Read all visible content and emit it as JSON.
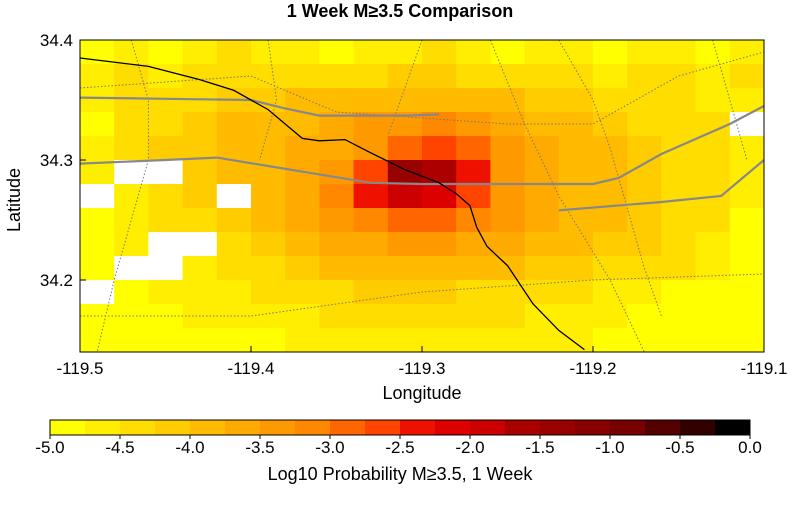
{
  "title": "1 Week M≥3.5 Comparison",
  "map": {
    "x_label": "Longitude",
    "y_label": "Latitude",
    "x_ticks": [
      "-119.5",
      "-119.4",
      "-119.3",
      "-119.2",
      "-119.1"
    ],
    "y_ticks": [
      "34.4",
      "34.3",
      "34.2"
    ],
    "lon_range": [
      -119.5,
      -119.1
    ],
    "lat_range": [
      34.14,
      34.4
    ],
    "cell_size_deg": 0.02,
    "missing_value_color": "#ffffff",
    "field_note": "grid of log10 probability values; null = no data (white)",
    "grid": [
      [
        -4.8,
        -4.6,
        -4.9,
        -4.7,
        -4.5,
        -4.6,
        -4.7,
        -4.8,
        -4.6,
        -4.7,
        -4.5,
        -4.6,
        -4.8,
        -4.7,
        -4.6,
        -4.8,
        -4.7,
        -4.6,
        -4.8,
        -4.6
      ],
      [
        -4.6,
        -4.5,
        -4.6,
        -4.5,
        -4.4,
        -4.3,
        -4.5,
        -4.4,
        -4.3,
        -4.2,
        -4.2,
        -4.3,
        -4.5,
        -4.4,
        -4.3,
        -4.6,
        -4.5,
        -4.4,
        -4.6,
        -4.5
      ],
      [
        -4.7,
        -4.5,
        -4.4,
        -4.3,
        -4.2,
        -4.1,
        -4.0,
        -4.0,
        -3.9,
        -3.8,
        -3.8,
        -3.9,
        -4.0,
        -4.1,
        -4.2,
        -4.3,
        -4.4,
        -4.5,
        -4.7,
        -4.6
      ],
      [
        -4.8,
        -4.5,
        -4.3,
        -4.2,
        -4.0,
        -3.9,
        -3.8,
        -3.7,
        -3.5,
        -3.3,
        -3.2,
        -3.4,
        -3.6,
        -3.8,
        -4.0,
        -4.1,
        -4.3,
        -4.4,
        -4.5,
        null
      ],
      [
        -4.7,
        -4.4,
        -4.2,
        -4.1,
        -3.9,
        -3.8,
        -3.7,
        -3.6,
        -3.3,
        -2.8,
        -2.6,
        -3.0,
        -3.4,
        -3.7,
        -3.9,
        -4.0,
        -4.2,
        -4.3,
        -4.5,
        -4.7
      ],
      [
        -4.6,
        null,
        null,
        -4.1,
        -4.0,
        -3.8,
        -3.6,
        -3.3,
        -2.6,
        -1.4,
        -1.6,
        -2.4,
        -3.3,
        -3.6,
        -3.8,
        -4.0,
        -4.1,
        -4.3,
        -4.5,
        -4.6
      ],
      [
        null,
        -4.6,
        -4.4,
        -4.2,
        null,
        -3.8,
        -3.6,
        -3.2,
        -2.4,
        -2.0,
        -2.1,
        -2.6,
        -3.3,
        -3.6,
        -3.8,
        -4.0,
        -4.1,
        -4.3,
        -4.4,
        -4.6
      ],
      [
        -4.8,
        -4.6,
        -4.5,
        -4.3,
        -4.1,
        -3.9,
        -3.7,
        -3.5,
        -3.1,
        -2.9,
        -3.0,
        -3.2,
        -3.5,
        -3.7,
        -3.8,
        -4.0,
        -4.1,
        -4.3,
        -4.5,
        -4.8
      ],
      [
        -4.9,
        -4.7,
        null,
        null,
        -4.3,
        -4.1,
        -3.9,
        -3.7,
        -3.6,
        -3.5,
        -3.5,
        -3.6,
        -3.7,
        -3.8,
        -3.9,
        -4.1,
        -4.2,
        -4.4,
        -4.6,
        -4.9
      ],
      [
        -4.8,
        null,
        null,
        -4.6,
        -4.5,
        -4.3,
        -4.1,
        -4.0,
        -3.9,
        -3.9,
        -3.9,
        -4.0,
        -4.0,
        -4.1,
        -4.2,
        -4.3,
        -4.4,
        -4.5,
        -4.7,
        -4.8
      ],
      [
        null,
        -4.8,
        -4.7,
        -4.6,
        -4.6,
        -4.5,
        -4.4,
        -4.3,
        -4.2,
        -4.2,
        -4.2,
        -4.3,
        -4.3,
        -4.4,
        -4.5,
        -4.6,
        -4.7,
        -4.8,
        -4.8,
        -4.9
      ],
      [
        -4.9,
        -4.8,
        -4.8,
        -4.7,
        -4.7,
        -4.6,
        -4.6,
        -4.5,
        -4.5,
        -4.4,
        -4.4,
        -4.5,
        -4.5,
        -4.6,
        -4.6,
        -4.7,
        -4.8,
        -4.8,
        -4.9,
        -4.9
      ],
      [
        -4.9,
        -4.9,
        -4.9,
        -4.8,
        -4.8,
        -4.8,
        -4.7,
        -4.7,
        -4.7,
        -4.6,
        -4.6,
        -4.6,
        -4.7,
        -4.7,
        -4.7,
        -4.8,
        -4.8,
        -4.9,
        -4.9,
        -4.9
      ]
    ],
    "coastline": [
      [
        -119.5,
        34.385
      ],
      [
        -119.46,
        34.378
      ],
      [
        -119.43,
        34.367
      ],
      [
        -119.41,
        34.358
      ],
      [
        -119.39,
        34.342
      ],
      [
        -119.37,
        34.318
      ],
      [
        -119.36,
        34.316
      ],
      [
        -119.345,
        34.317
      ],
      [
        -119.33,
        34.306
      ],
      [
        -119.31,
        34.292
      ],
      [
        -119.29,
        34.281
      ],
      [
        -119.28,
        34.272
      ],
      [
        -119.272,
        34.262
      ],
      [
        -119.268,
        34.244
      ],
      [
        -119.262,
        34.228
      ],
      [
        -119.25,
        34.212
      ],
      [
        -119.235,
        34.18
      ],
      [
        -119.22,
        34.158
      ],
      [
        -119.205,
        34.142
      ]
    ],
    "roads": [
      [
        [
          -119.5,
          34.352
        ],
        [
          -119.45,
          34.351
        ],
        [
          -119.4,
          34.35
        ],
        [
          -119.38,
          34.343
        ],
        [
          -119.36,
          34.337
        ],
        [
          -119.34,
          34.337
        ],
        [
          -119.31,
          34.337
        ],
        [
          -119.29,
          34.338
        ]
      ],
      [
        [
          -119.5,
          34.297
        ],
        [
          -119.45,
          34.3
        ],
        [
          -119.42,
          34.302
        ],
        [
          -119.39,
          34.295
        ],
        [
          -119.36,
          34.288
        ],
        [
          -119.33,
          34.281
        ],
        [
          -119.3,
          34.28
        ],
        [
          -119.25,
          34.28
        ],
        [
          -119.2,
          34.28
        ],
        [
          -119.185,
          34.285
        ],
        [
          -119.16,
          34.305
        ],
        [
          -119.12,
          34.33
        ],
        [
          -119.1,
          34.345
        ]
      ],
      [
        [
          -119.22,
          34.258
        ],
        [
          -119.16,
          34.265
        ],
        [
          -119.125,
          34.27
        ],
        [
          -119.1,
          34.3
        ]
      ]
    ],
    "faults": [
      [
        [
          -119.47,
          34.4
        ],
        [
          -119.46,
          34.35
        ],
        [
          -119.46,
          34.3
        ],
        [
          -119.47,
          34.25
        ],
        [
          -119.48,
          34.2
        ],
        [
          -119.49,
          34.14
        ]
      ],
      [
        [
          -119.39,
          34.4
        ],
        [
          -119.385,
          34.35
        ],
        [
          -119.395,
          34.3
        ]
      ],
      [
        [
          -119.3,
          34.4
        ],
        [
          -119.31,
          34.36
        ],
        [
          -119.32,
          34.32
        ]
      ],
      [
        [
          -119.22,
          34.4
        ],
        [
          -119.2,
          34.35
        ],
        [
          -119.19,
          34.31
        ],
        [
          -119.18,
          34.26
        ],
        [
          -119.17,
          34.21
        ],
        [
          -119.16,
          34.17
        ]
      ],
      [
        [
          -119.13,
          34.4
        ],
        [
          -119.12,
          34.35
        ],
        [
          -119.11,
          34.3
        ]
      ],
      [
        [
          -119.5,
          34.17
        ],
        [
          -119.4,
          34.17
        ],
        [
          -119.3,
          34.19
        ],
        [
          -119.2,
          34.2
        ],
        [
          -119.1,
          34.205
        ]
      ],
      [
        [
          -119.5,
          34.36
        ],
        [
          -119.45,
          34.365
        ],
        [
          -119.4,
          34.37
        ],
        [
          -119.35,
          34.34
        ],
        [
          -119.25,
          34.33
        ],
        [
          -119.2,
          34.33
        ],
        [
          -119.15,
          34.37
        ],
        [
          -119.1,
          34.39
        ]
      ],
      [
        [
          -119.26,
          34.4
        ],
        [
          -119.24,
          34.33
        ],
        [
          -119.22,
          34.27
        ],
        [
          -119.19,
          34.2
        ],
        [
          -119.17,
          34.14
        ]
      ]
    ]
  },
  "colorbar": {
    "label": "Log10 Probability M≥3.5, 1 Week",
    "ticks": [
      "-5.0",
      "-4.5",
      "-4.0",
      "-3.5",
      "-3.0",
      "-2.5",
      "-2.0",
      "-1.5",
      "-1.0",
      "-0.5",
      "0.0"
    ],
    "min": -5.0,
    "max": 0.0,
    "colors": [
      "#ffff00",
      "#ffee00",
      "#ffdd00",
      "#ffcc00",
      "#ffbb00",
      "#ffaa00",
      "#ff9900",
      "#ff8800",
      "#ff6600",
      "#ff4400",
      "#ee1100",
      "#dd0000",
      "#cc0000",
      "#aa0000",
      "#990000",
      "#880000",
      "#770000",
      "#550000",
      "#330000",
      "#000000"
    ]
  },
  "colors": {
    "coastline": "#000000",
    "road": "#888888",
    "fault": "#777777",
    "frame": "#000000"
  }
}
